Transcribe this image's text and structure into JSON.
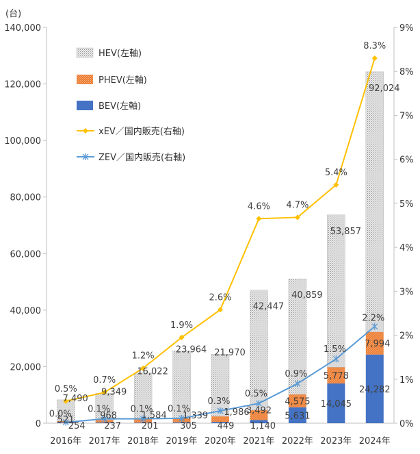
{
  "chart_data": {
    "type": "bar+line",
    "y_unit": "(台)",
    "ylim": [
      0,
      140000
    ],
    "y2lim": [
      0,
      9
    ],
    "y_ticks": [
      "0",
      "20,000",
      "40,000",
      "60,000",
      "80,000",
      "100,000",
      "120,000",
      "140,000"
    ],
    "y2_ticks": [
      "0%",
      "1%",
      "2%",
      "3%",
      "4%",
      "5%",
      "6%",
      "7%",
      "8%",
      "9%"
    ],
    "categories": [
      "2016年",
      "2017年",
      "2018年",
      "2019年",
      "2020年",
      "2021年",
      "2022年",
      "2023年",
      "2024年"
    ],
    "bar_series": [
      {
        "name": "BEV(左軸)",
        "color": "#4472c4",
        "values": [
          254,
          237,
          201,
          305,
          449,
          1140,
          5631,
          14045,
          24282
        ],
        "labels": [
          "254",
          "237",
          "201",
          "305",
          "449",
          "1,140",
          "5,631",
          "14,045",
          "24,282"
        ]
      },
      {
        "name": "PHEV(左軸)",
        "color": "#ed7d31",
        "values": [
          521,
          968,
          1584,
          1339,
          1986,
          3492,
          4575,
          5778,
          7994
        ],
        "labels": [
          "521",
          "968",
          "1,584",
          "1,339",
          "1,986",
          "3,492",
          "4,575",
          "5,778",
          "7,994"
        ]
      },
      {
        "name": "HEV(左軸)",
        "color": "#d9d9d9",
        "values": [
          7490,
          9349,
          16022,
          23964,
          21970,
          42447,
          40859,
          53857,
          92024
        ],
        "labels": [
          "7,490",
          "9,349",
          "16,022",
          "23,964",
          "21,970",
          "42,447",
          "40,859",
          "53,857",
          "92,024"
        ]
      }
    ],
    "line_series": [
      {
        "name": "xEV／国内販売(右軸)",
        "color": "#ffc000",
        "values": [
          0.5,
          0.7,
          1.25,
          1.95,
          2.58,
          4.65,
          4.68,
          5.42,
          8.3
        ],
        "labels": [
          "0.5%",
          "0.7%",
          "1.2%",
          "1.9%",
          "2.6%",
          "4.6%",
          "4.7%",
          "5.4%",
          "8.3%"
        ]
      },
      {
        "name": "ZEV／国内販売(右軸)",
        "color": "#5b9bd5",
        "values": [
          0.02,
          0.1,
          0.1,
          0.11,
          0.28,
          0.45,
          0.9,
          1.46,
          2.2
        ],
        "labels": [
          "0.0%",
          "0.1%",
          "0.1%",
          "0.1%",
          "0.3%",
          "0.5%",
          "0.9%",
          "1.5%",
          "2.2%"
        ]
      }
    ],
    "legend_labels": [
      "HEV(左軸)",
      "PHEV(左軸)",
      "BEV(左軸)",
      "xEV／国内販売(右軸)",
      "ZEV／国内販売(右軸)"
    ],
    "legend": "top-left",
    "grid": false
  }
}
